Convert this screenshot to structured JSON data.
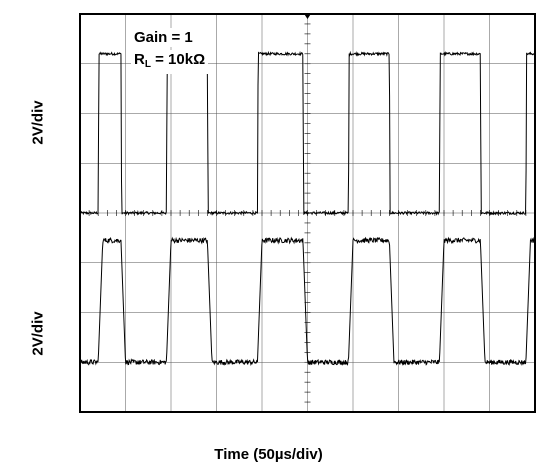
{
  "chart_data": {
    "type": "line",
    "title": "",
    "xlabel": "Time (50µs/div)",
    "ylabel_top": "2V/div",
    "ylabel_bottom": "2V/div",
    "annotations": {
      "gain_text": "Gain = 1",
      "rl_prefix": "R",
      "rl_subscript": "L",
      "rl_suffix": " = 10kΩ"
    },
    "grid": {
      "major_x_divisions": 10,
      "major_y_divisions": 8,
      "minor_ticks_per_div": 5
    },
    "xlim": [
      0,
      10
    ],
    "ylim": [
      0,
      8
    ],
    "x_units": "div",
    "y_units": "div",
    "series": [
      {
        "role": "input",
        "high_level": 7.2,
        "low_level": 4.0,
        "transitions": [
          0.4,
          0.9,
          1.9,
          2.8,
          3.9,
          4.9,
          5.9,
          6.8,
          7.9,
          8.8,
          9.8
        ],
        "start_level": "low",
        "noise_div": 0.05
      },
      {
        "role": "output",
        "high_level": 3.45,
        "low_level": 1.0,
        "transitions": [
          0.4,
          0.9,
          1.9,
          2.8,
          3.9,
          4.9,
          5.9,
          6.8,
          7.9,
          8.8,
          9.8
        ],
        "start_level": "low",
        "slew_div": 0.1,
        "noise_div": 0.1
      }
    ]
  }
}
